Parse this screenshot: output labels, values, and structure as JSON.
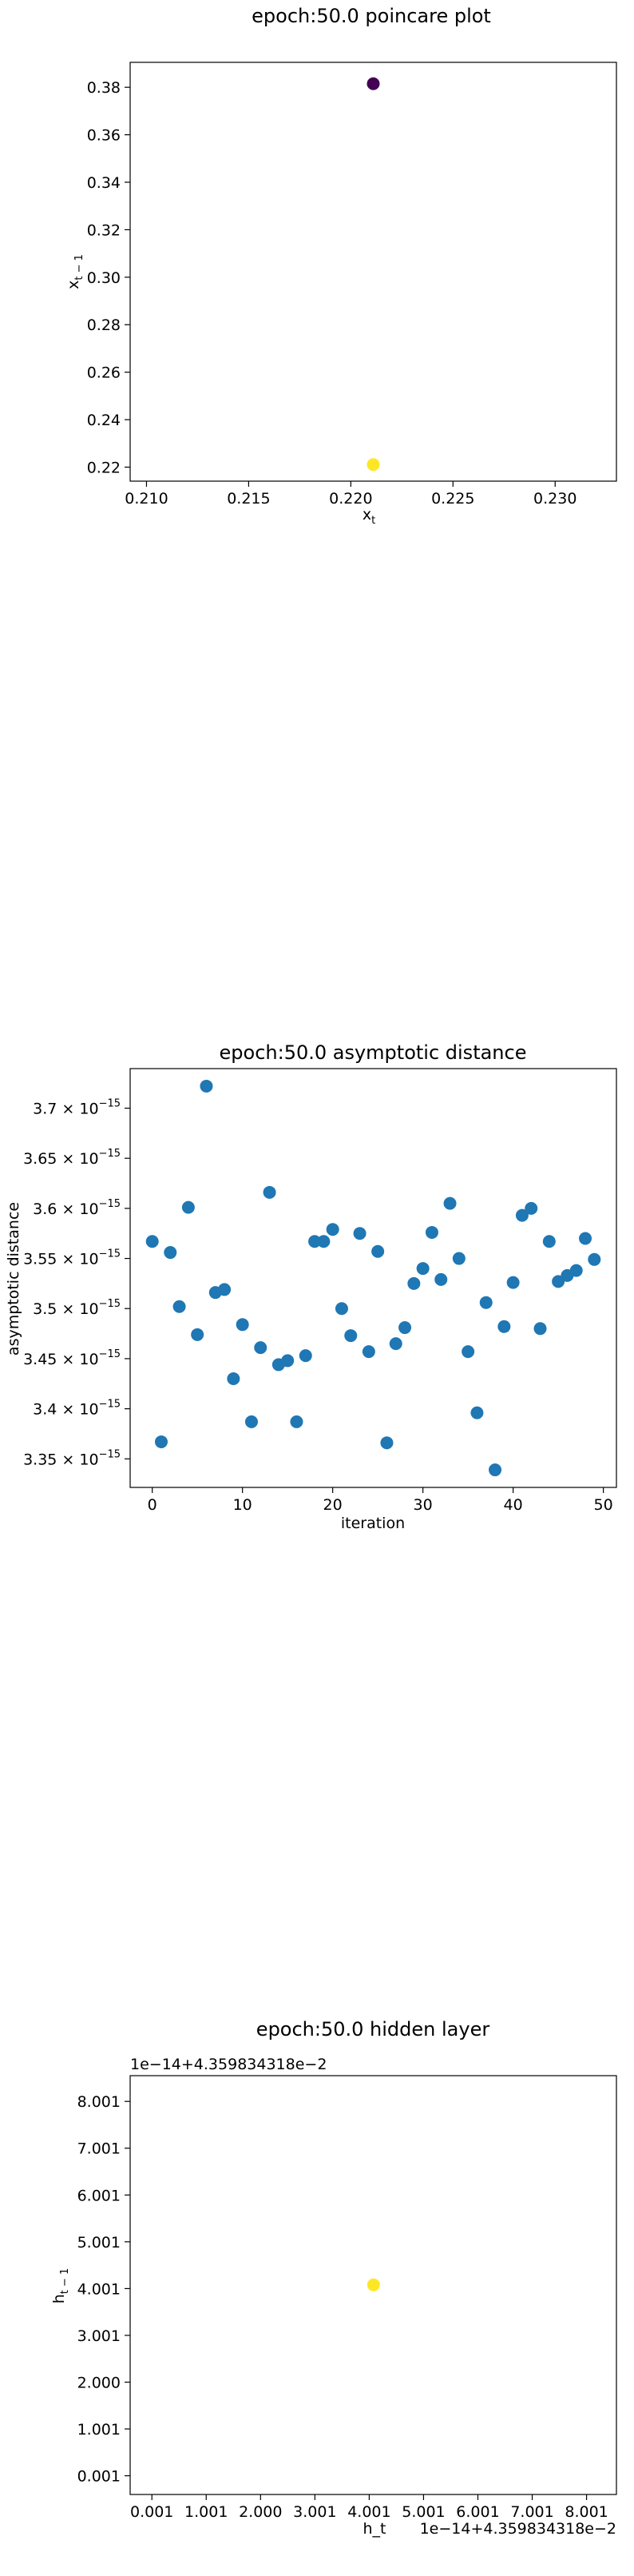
{
  "chart_data": [
    {
      "type": "scatter",
      "title": "epoch:50.0 poincare plot",
      "xlabel": "x",
      "xlabel_sub": "t",
      "ylabel": "x",
      "ylabel_sub": "t − 1",
      "xlim": [
        0.2092,
        0.233
      ],
      "ylim": [
        0.2141,
        0.3905
      ],
      "xticks": [
        0.21,
        0.215,
        0.22,
        0.225,
        0.23
      ],
      "xtick_labels": [
        "0.210",
        "0.215",
        "0.220",
        "0.225",
        "0.230"
      ],
      "yticks": [
        0.22,
        0.24,
        0.26,
        0.28,
        0.3,
        0.32,
        0.34,
        0.36,
        0.38
      ],
      "ytick_labels": [
        "0.22",
        "0.24",
        "0.26",
        "0.28",
        "0.30",
        "0.32",
        "0.34",
        "0.36",
        "0.38"
      ],
      "points": [
        {
          "x": 0.2211,
          "y": 0.3815,
          "color": "#440154"
        },
        {
          "x": 0.2211,
          "y": 0.2211,
          "color": "#fde725"
        }
      ],
      "grid": false
    },
    {
      "type": "scatter",
      "title": "epoch:50.0 asymptotic distance",
      "xlabel": "iteration",
      "ylabel": "asymptotic distance",
      "xlim": [
        -2.45,
        51.45
      ],
      "ylim": [
        3.3215,
        3.7395
      ],
      "xticks": [
        0,
        10,
        20,
        30,
        40,
        50
      ],
      "xtick_labels": [
        "0",
        "10",
        "20",
        "30",
        "40",
        "50"
      ],
      "yticks": [
        3.35,
        3.4,
        3.45,
        3.5,
        3.55,
        3.6,
        3.65,
        3.7
      ],
      "ytick_mantissas": [
        "3.35",
        "3.4",
        "3.45",
        "3.5",
        "3.55",
        "3.6",
        "3.65",
        "3.7"
      ],
      "ytick_base": "× 10",
      "ytick_exponent": "−15",
      "y_unit_exponent": -15,
      "color": "#1f77b4",
      "x": [
        0,
        1,
        2,
        3,
        4,
        5,
        6,
        7,
        8,
        9,
        10,
        11,
        12,
        13,
        14,
        15,
        16,
        17,
        18,
        19,
        20,
        21,
        22,
        23,
        24,
        25,
        26,
        27,
        28,
        29,
        30,
        31,
        32,
        33,
        34,
        35,
        36,
        37,
        38,
        39,
        40,
        41,
        42,
        43,
        44,
        45,
        46,
        47,
        48,
        49
      ],
      "y": [
        3.567,
        3.367,
        3.556,
        3.502,
        3.601,
        3.474,
        3.722,
        3.516,
        3.519,
        3.43,
        3.484,
        3.387,
        3.461,
        3.616,
        3.444,
        3.448,
        3.387,
        3.453,
        3.567,
        3.567,
        3.579,
        3.5,
        3.473,
        3.575,
        3.457,
        3.557,
        3.366,
        3.465,
        3.481,
        3.525,
        3.54,
        3.576,
        3.529,
        3.605,
        3.55,
        3.457,
        3.396,
        3.506,
        3.339,
        3.482,
        3.526,
        3.593,
        3.6,
        3.48,
        3.567,
        3.527,
        3.533,
        3.538,
        3.57,
        3.549
      ],
      "grid": false
    },
    {
      "type": "scatter",
      "title": "epoch:50.0 hidden layer",
      "xlabel": "h_t",
      "ylabel": "h",
      "ylabel_sub": "t − 1",
      "offset_text_top": "1e−14+4.359834318e−2",
      "offset_text_bottom": "1e−14+4.359834318e−2",
      "xlim": [
        -0.4,
        8.55
      ],
      "ylim": [
        -0.4,
        8.55
      ],
      "xticks": [
        0,
        1,
        2,
        3,
        4,
        5,
        6,
        7,
        8
      ],
      "xtick_labels": [
        "0.001",
        "1.001",
        "2.000",
        "3.001",
        "4.001",
        "5.001",
        "6.001",
        "7.001",
        "8.001"
      ],
      "yticks": [
        0,
        1,
        2,
        3,
        4,
        5,
        6,
        7,
        8
      ],
      "ytick_labels": [
        "0.001",
        "1.001",
        "2.000",
        "3.001",
        "4.001",
        "5.001",
        "6.001",
        "7.001",
        "8.001"
      ],
      "points": [
        {
          "x": 4.08,
          "y": 4.08,
          "color": "#fde725"
        }
      ],
      "grid": false
    }
  ]
}
